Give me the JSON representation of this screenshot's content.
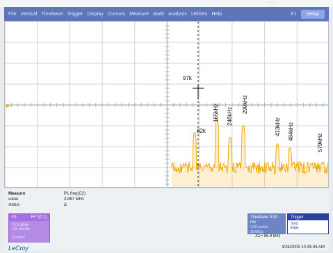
{
  "window": {
    "top_right_glyph": "· · ·"
  },
  "menu": {
    "items": [
      "File",
      "Vertical",
      "Timebase",
      "Trigger",
      "Display",
      "Cursors",
      "Measure",
      "Math",
      "Analysis",
      "Utilities",
      "Help"
    ],
    "right_label": "F1",
    "setup_label": "Setup"
  },
  "scope": {
    "colors": {
      "grid": "#cfd3d9",
      "trace": "#f2a800",
      "cursor": "#222222",
      "ground_marker": "#f2a800"
    },
    "cursor_label": "97k",
    "peak_labels": {
      "82k": "82k",
      "165kHz": "165kHz",
      "248kHz": "248kHz",
      "290kHz": "290kHz",
      "413kHz": "413kHz",
      "484kHz": "484kHz",
      "579kHz": "579kHz"
    },
    "ground_marker": "▶"
  },
  "measure": {
    "title": "Measure",
    "value_label": "value",
    "status_label": "status",
    "p1": {
      "name": "P1:freq(C2)",
      "value": "3.887 MHz",
      "status": "Δ"
    },
    "dots": [
      "·",
      "·",
      "·",
      "·",
      "·",
      "·",
      "·",
      "·",
      "·",
      "·"
    ]
  },
  "f1": {
    "title": "F1",
    "function": "FFT(C1)",
    "line1": "10.0 dB/div",
    "line2": "125 kHz/div",
    "bottom": "0.0 dBm"
  },
  "timebase": {
    "label": "Timebase",
    "value": "0.00 ms",
    "line1": "2.50 ms/div",
    "line2": "25 MS/s"
  },
  "trigger": {
    "label": "Trigger",
    "value": "",
    "line1": "Stop",
    "line2": "Edge"
  },
  "cursor_readout": "X1= 96.9 kHz",
  "brand": {
    "logo": "LeCroy"
  },
  "timestamp": "4/28/2005 10:35:45 AM"
}
